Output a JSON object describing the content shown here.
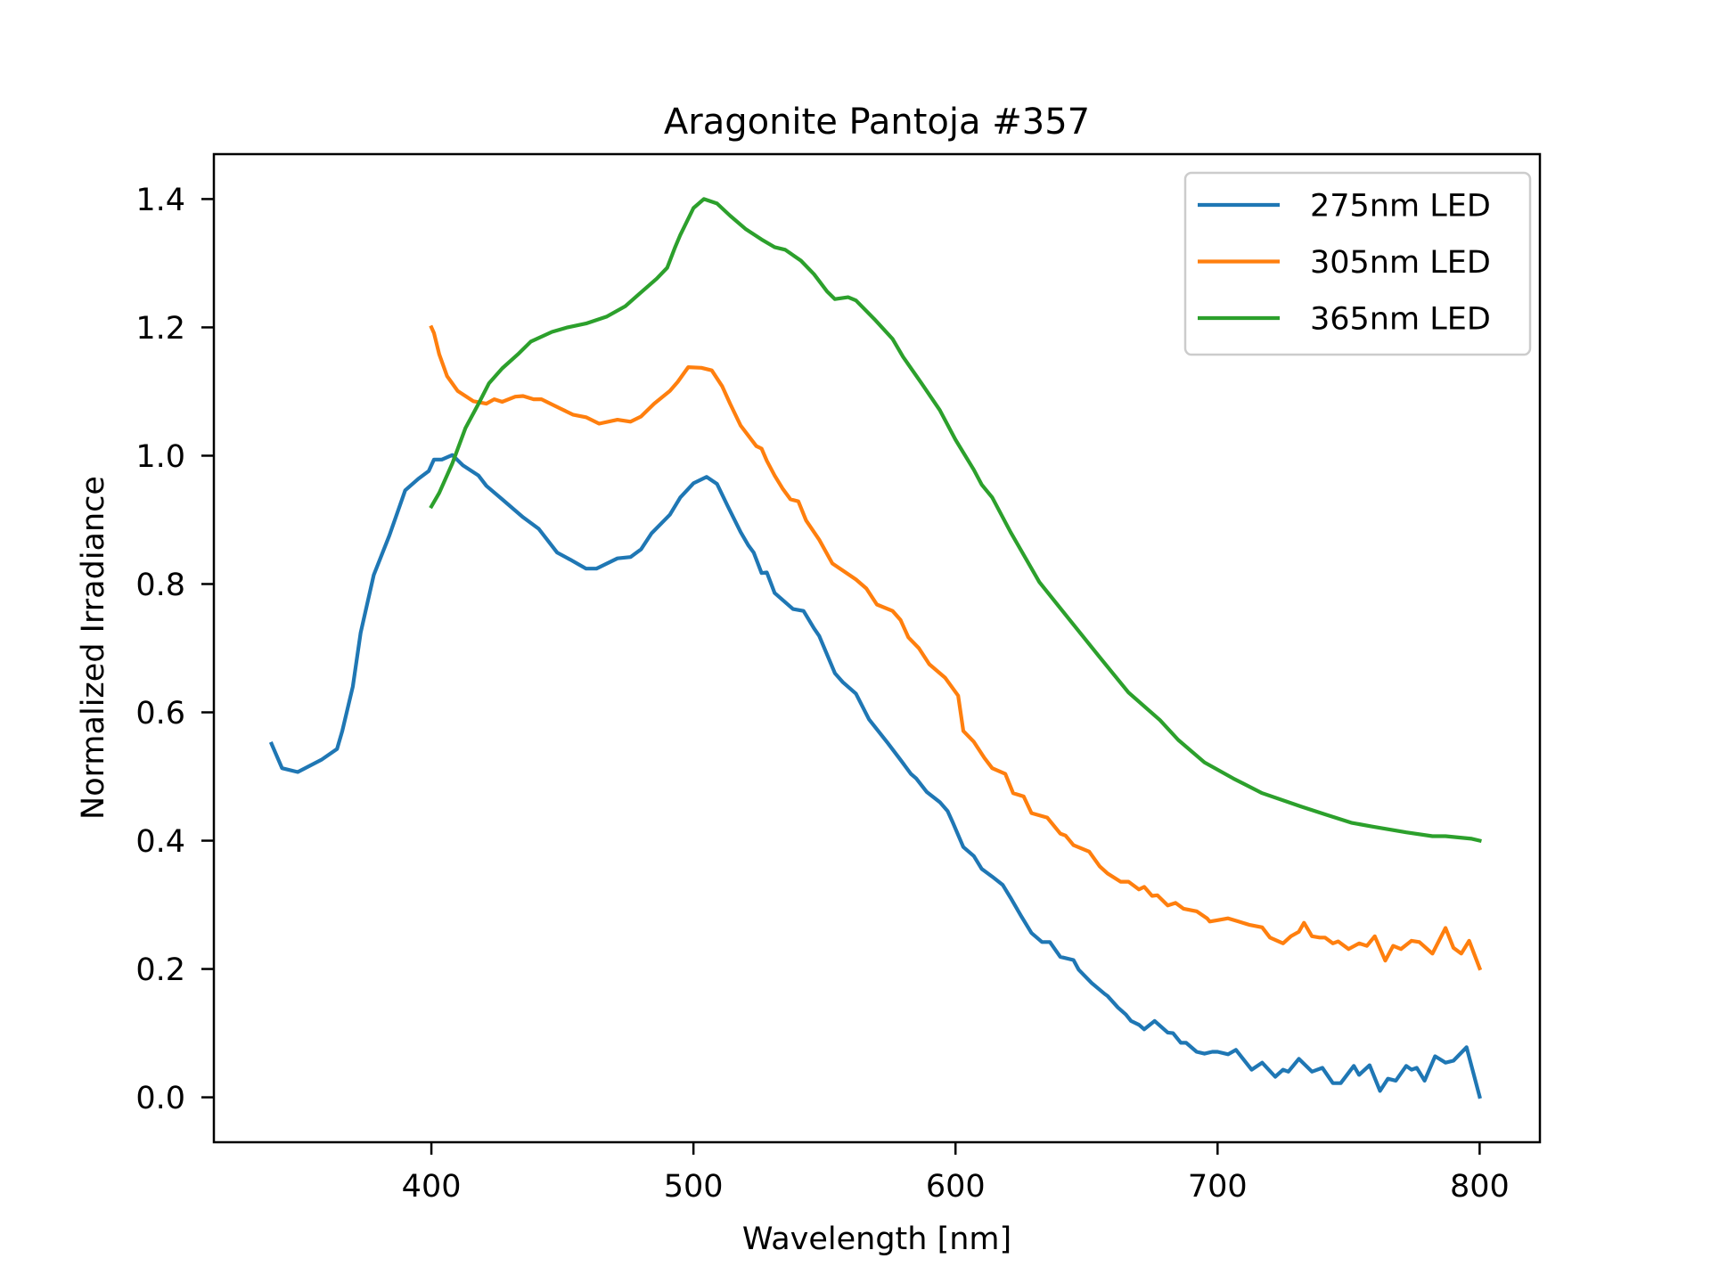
{
  "chart_data": {
    "type": "line",
    "title": "Aragonite Pantoja #357",
    "xlabel": "Wavelength [nm]",
    "ylabel": "Normalized Irradiance",
    "xlim": [
      317,
      823
    ],
    "ylim": [
      -0.07,
      1.47
    ],
    "xticks": [
      400,
      500,
      600,
      700,
      800
    ],
    "xtick_labels": [
      "400",
      "500",
      "600",
      "700",
      "800"
    ],
    "yticks": [
      0.0,
      0.2,
      0.4,
      0.6,
      0.8,
      1.0,
      1.2,
      1.4
    ],
    "ytick_labels": [
      "0.0",
      "0.2",
      "0.4",
      "0.6",
      "0.8",
      "1.0",
      "1.2",
      "1.4"
    ],
    "grid": false,
    "legend_position": "top-right",
    "series": [
      {
        "name": "275nm LED",
        "color": "#1f77b4",
        "x": [
          339,
          343,
          349,
          358,
          364,
          366,
          370,
          373,
          378,
          384,
          390,
          395,
          399,
          401,
          404,
          408,
          412,
          418,
          421,
          427,
          435,
          441,
          448,
          453,
          459,
          463,
          471,
          476,
          480,
          484,
          491,
          495,
          500,
          505,
          509,
          513,
          518,
          521,
          523,
          526,
          528,
          531,
          538,
          542,
          546,
          548,
          554,
          557,
          562,
          567,
          574,
          579,
          583,
          585,
          589,
          594,
          597,
          599,
          603,
          607,
          610,
          614,
          618,
          621,
          625,
          629,
          633,
          636,
          640,
          645,
          647,
          652,
          657,
          658,
          662,
          665,
          667,
          670,
          672,
          676,
          681,
          683,
          686,
          688,
          692,
          695,
          698,
          700,
          704,
          707,
          713,
          717,
          722,
          725,
          727,
          731,
          736,
          740,
          744,
          747,
          752,
          754,
          758,
          762,
          765,
          768,
          772,
          774,
          776,
          779,
          783,
          787,
          790,
          795,
          800
        ],
        "y": [
          0.551,
          0.513,
          0.507,
          0.526,
          0.543,
          0.571,
          0.64,
          0.724,
          0.814,
          0.876,
          0.946,
          0.964,
          0.976,
          0.994,
          0.994,
          1.001,
          0.985,
          0.969,
          0.953,
          0.932,
          0.904,
          0.886,
          0.849,
          0.838,
          0.824,
          0.824,
          0.84,
          0.842,
          0.854,
          0.879,
          0.908,
          0.935,
          0.957,
          0.967,
          0.956,
          0.922,
          0.881,
          0.86,
          0.849,
          0.817,
          0.818,
          0.786,
          0.761,
          0.758,
          0.731,
          0.719,
          0.661,
          0.647,
          0.629,
          0.589,
          0.553,
          0.526,
          0.504,
          0.497,
          0.476,
          0.46,
          0.446,
          0.428,
          0.39,
          0.376,
          0.356,
          0.344,
          0.331,
          0.311,
          0.283,
          0.256,
          0.242,
          0.242,
          0.219,
          0.214,
          0.199,
          0.178,
          0.161,
          0.158,
          0.14,
          0.129,
          0.119,
          0.113,
          0.106,
          0.119,
          0.101,
          0.1,
          0.085,
          0.085,
          0.071,
          0.068,
          0.071,
          0.071,
          0.067,
          0.074,
          0.043,
          0.054,
          0.032,
          0.043,
          0.04,
          0.06,
          0.04,
          0.046,
          0.022,
          0.022,
          0.049,
          0.035,
          0.05,
          0.01,
          0.029,
          0.026,
          0.049,
          0.043,
          0.046,
          0.026,
          0.064,
          0.054,
          0.057,
          0.078,
          0.001
        ]
      },
      {
        "name": "305nm LED",
        "color": "#ff7f0e",
        "x": [
          400,
          401,
          403,
          406,
          410,
          416,
          421,
          424,
          427,
          432,
          435,
          439,
          442,
          449,
          454,
          459,
          464,
          471,
          476,
          480,
          485,
          491,
          494,
          498,
          503,
          507,
          511,
          514,
          518,
          524,
          526,
          528,
          531,
          534,
          537,
          540,
          543,
          548,
          553,
          557,
          562,
          566,
          570,
          576,
          579,
          582,
          586,
          590,
          596,
          601,
          603,
          607,
          611,
          614,
          619,
          622,
          626,
          629,
          635,
          640,
          642,
          645,
          651,
          655,
          658,
          663,
          666,
          670,
          672,
          675,
          677,
          681,
          684,
          687,
          692,
          696,
          697,
          700,
          704,
          708,
          712,
          717,
          720,
          725,
          728,
          731,
          733,
          736,
          739,
          741,
          744,
          746,
          750,
          754,
          757,
          760,
          764,
          767,
          770,
          774,
          777,
          782,
          787,
          790,
          793,
          796,
          800
        ],
        "y": [
          1.2,
          1.191,
          1.158,
          1.124,
          1.101,
          1.085,
          1.081,
          1.088,
          1.084,
          1.092,
          1.093,
          1.088,
          1.088,
          1.074,
          1.064,
          1.06,
          1.05,
          1.056,
          1.053,
          1.061,
          1.081,
          1.101,
          1.115,
          1.138,
          1.137,
          1.133,
          1.108,
          1.081,
          1.047,
          1.015,
          1.011,
          0.992,
          0.969,
          0.949,
          0.932,
          0.929,
          0.899,
          0.869,
          0.832,
          0.821,
          0.807,
          0.793,
          0.768,
          0.758,
          0.744,
          0.717,
          0.7,
          0.675,
          0.654,
          0.626,
          0.571,
          0.554,
          0.529,
          0.513,
          0.504,
          0.474,
          0.469,
          0.443,
          0.436,
          0.411,
          0.408,
          0.393,
          0.383,
          0.36,
          0.349,
          0.336,
          0.336,
          0.324,
          0.328,
          0.314,
          0.315,
          0.299,
          0.303,
          0.294,
          0.29,
          0.279,
          0.274,
          0.276,
          0.279,
          0.274,
          0.269,
          0.265,
          0.249,
          0.24,
          0.251,
          0.258,
          0.272,
          0.251,
          0.249,
          0.249,
          0.24,
          0.243,
          0.231,
          0.24,
          0.236,
          0.251,
          0.213,
          0.236,
          0.231,
          0.244,
          0.242,
          0.224,
          0.264,
          0.233,
          0.224,
          0.244,
          0.201
        ]
      },
      {
        "name": "365nm LED",
        "color": "#2ca02c",
        "x": [
          400,
          403,
          408,
          413,
          418,
          422,
          427,
          433,
          438,
          446,
          452,
          459,
          467,
          474,
          479,
          486,
          490,
          493,
          495,
          500,
          504,
          509,
          514,
          520,
          526,
          531,
          535,
          541,
          546,
          551,
          554,
          559,
          562,
          569,
          576,
          580,
          587,
          594,
          600,
          607,
          610,
          614,
          621,
          632,
          644,
          655,
          666,
          678,
          685,
          695,
          706,
          717,
          732,
          741,
          751,
          759,
          772,
          782,
          787,
          797,
          800
        ],
        "y": [
          0.921,
          0.942,
          0.988,
          1.043,
          1.081,
          1.113,
          1.136,
          1.158,
          1.178,
          1.193,
          1.2,
          1.206,
          1.217,
          1.233,
          1.251,
          1.276,
          1.293,
          1.325,
          1.344,
          1.386,
          1.4,
          1.393,
          1.374,
          1.353,
          1.337,
          1.325,
          1.321,
          1.304,
          1.283,
          1.256,
          1.244,
          1.247,
          1.242,
          1.213,
          1.182,
          1.154,
          1.113,
          1.071,
          1.025,
          0.978,
          0.955,
          0.935,
          0.881,
          0.803,
          0.742,
          0.686,
          0.631,
          0.588,
          0.557,
          0.522,
          0.497,
          0.474,
          0.453,
          0.441,
          0.428,
          0.422,
          0.413,
          0.407,
          0.407,
          0.403,
          0.4
        ]
      }
    ]
  }
}
